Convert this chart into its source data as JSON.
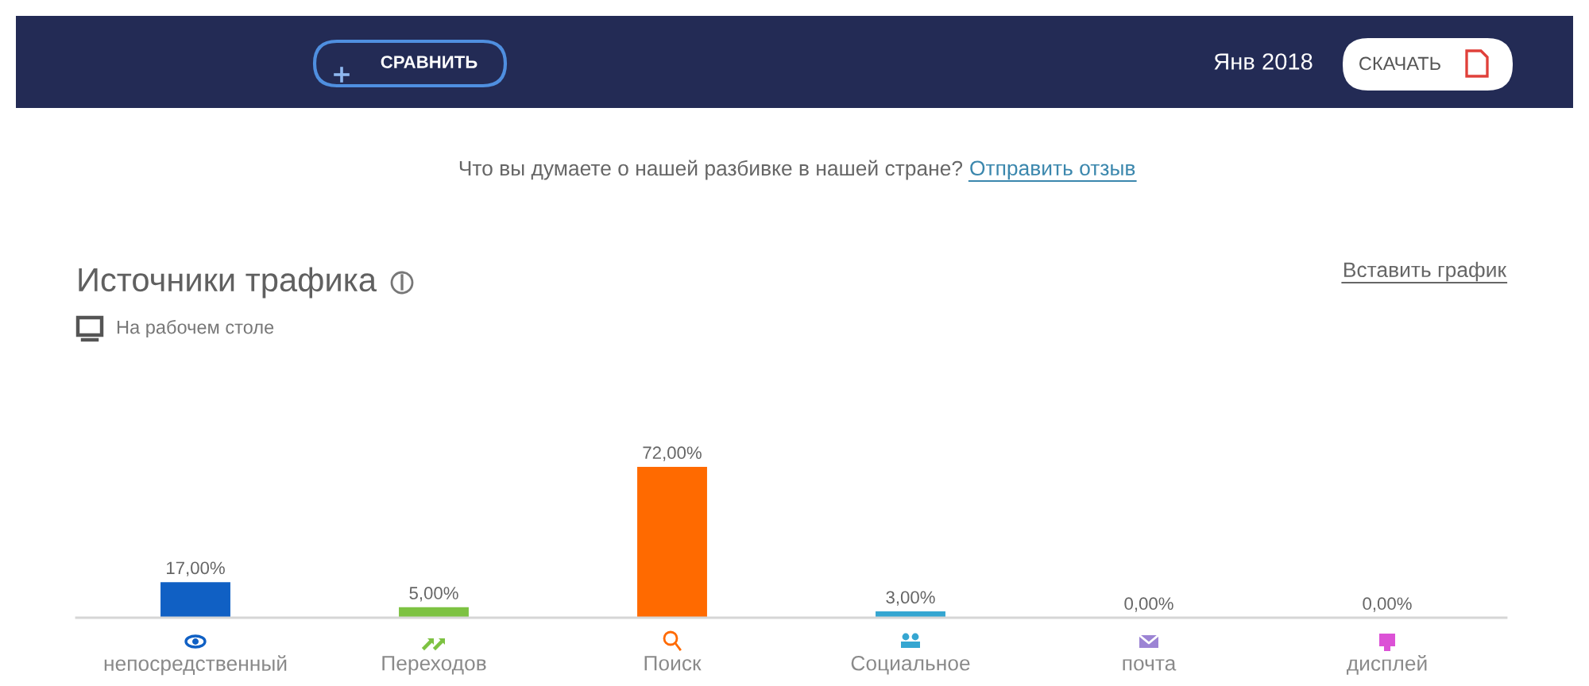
{
  "chart_data": {
    "type": "bar",
    "title": "Источники трафика",
    "subtitle": "На рабочем столе",
    "categories": [
      "непосредственный",
      "Переходов",
      "Поиск",
      "Социальное",
      "почта",
      "дисплей"
    ],
    "values": [
      17,
      5,
      72,
      3,
      0,
      0
    ],
    "colors": [
      "#1060c4",
      "#7dc242",
      "#ff6a00",
      "#35a6d1",
      "#9c84d4",
      "#dc52d6"
    ],
    "value_labels": [
      "17,00%",
      "5,00%",
      "72,00%",
      "3,00%",
      "0,00%",
      "0,00%"
    ],
    "annotations": [
      "СРАВНИТЬ",
      "Янв 2018",
      "СКАЧАТЬ",
      "Что вы думаете о нашей разбивке в нашей стране?",
      "Отправить отзыв",
      "Вставить график"
    ]
  }
}
